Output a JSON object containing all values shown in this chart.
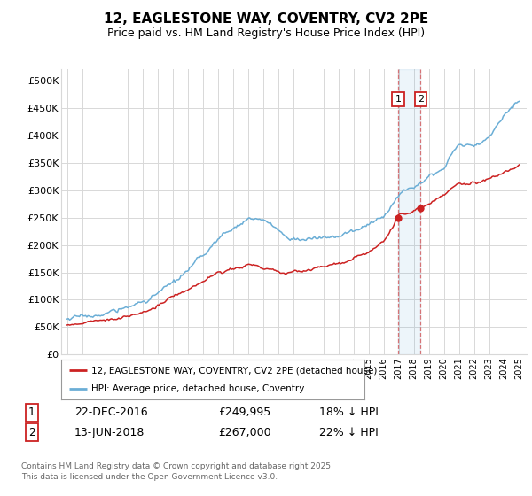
{
  "title": "12, EAGLESTONE WAY, COVENTRY, CV2 2PE",
  "subtitle": "Price paid vs. HM Land Registry's House Price Index (HPI)",
  "ylim": [
    0,
    520000
  ],
  "ytick_labels": [
    "£0",
    "£50K",
    "£100K",
    "£150K",
    "£200K",
    "£250K",
    "£300K",
    "£350K",
    "£400K",
    "£450K",
    "£500K"
  ],
  "ytick_vals": [
    0,
    50000,
    100000,
    150000,
    200000,
    250000,
    300000,
    350000,
    400000,
    450000,
    500000
  ],
  "xlim_start": 1994.6,
  "xlim_end": 2025.5,
  "hpi_color": "#6baed6",
  "price_color": "#cc2222",
  "marker1_date": 2016.97,
  "marker2_date": 2018.46,
  "legend_line1": "12, EAGLESTONE WAY, COVENTRY, CV2 2PE (detached house)",
  "legend_line2": "HPI: Average price, detached house, Coventry",
  "annotation1_num": "1",
  "annotation1_date": "22-DEC-2016",
  "annotation1_price": "£249,995",
  "annotation1_hpi": "18% ↓ HPI",
  "annotation2_num": "2",
  "annotation2_date": "13-JUN-2018",
  "annotation2_price": "£267,000",
  "annotation2_hpi": "22% ↓ HPI",
  "footer": "Contains HM Land Registry data © Crown copyright and database right 2025.\nThis data is licensed under the Open Government Licence v3.0.",
  "background_color": "#ffffff",
  "grid_color": "#d8d8d8"
}
